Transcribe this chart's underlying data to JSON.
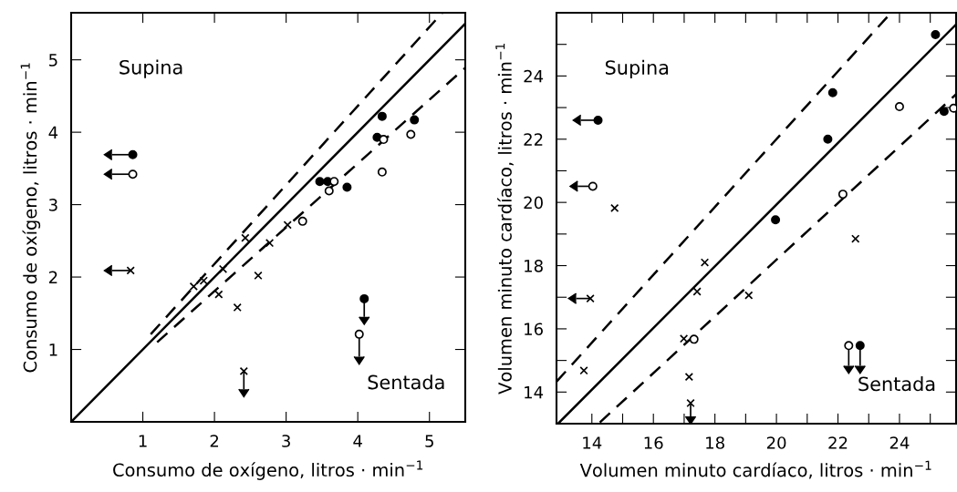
{
  "chart_data": [
    {
      "type": "scatter",
      "xlabel": "Consumo de oxígeno, litros · min$^{−1}$",
      "ylabel": "Consumo de oxígeno, litros · min$^{−1}$",
      "annotations": [
        "Supina",
        "Sentada"
      ],
      "xlim": [
        0,
        5.5
      ],
      "ylim": [
        0,
        5.65
      ],
      "xticks": [
        1,
        2,
        3,
        4,
        5
      ],
      "yticks": [
        1,
        2,
        3,
        4,
        5
      ],
      "grid": false,
      "legend": false,
      "series": [
        {
          "marker": "circle",
          "color": "#000000",
          "x": [
            0.86,
            3.47,
            3.58,
            3.85,
            4.34,
            4.27,
            4.79,
            4.09
          ],
          "values": [
            3.69,
            3.32,
            3.32,
            3.24,
            4.22,
            3.93,
            4.17,
            1.7
          ],
          "xerrors": [
            [
              0.57,
              0.86
            ],
            null,
            null,
            null,
            null,
            null,
            null,
            null
          ],
          "errors": [
            null,
            null,
            null,
            null,
            null,
            null,
            null,
            [
              1.45,
              1.7
            ]
          ]
        },
        {
          "marker": "circle",
          "color": "#ffffff",
          "x": [
            0.86,
            3.67,
            3.6,
            3.23,
            4.36,
            4.34,
            4.74,
            4.02
          ],
          "values": [
            3.42,
            3.32,
            3.19,
            2.77,
            3.9,
            3.45,
            3.97,
            1.21
          ],
          "xerrors": [
            [
              0.57,
              0.86
            ],
            null,
            null,
            null,
            null,
            null,
            null,
            null
          ],
          "errors": [
            null,
            null,
            null,
            null,
            null,
            null,
            null,
            [
              0.9,
              1.21
            ]
          ]
        },
        {
          "marker": "cross",
          "color": "#000000",
          "x": [
            0.83,
            1.71,
            1.85,
            2.12,
            2.06,
            2.43,
            2.77,
            3.02,
            2.61,
            2.32,
            2.41
          ],
          "values": [
            2.09,
            1.87,
            1.95,
            2.11,
            1.76,
            2.54,
            2.47,
            2.72,
            2.02,
            1.58,
            0.7
          ],
          "xerrors": [
            [
              0.57,
              0.83
            ],
            null,
            null,
            null,
            null,
            null,
            null,
            null,
            null,
            null,
            null
          ],
          "errors": [
            null,
            null,
            null,
            null,
            null,
            null,
            null,
            null,
            null,
            null,
            [
              0.45,
              0.7
            ]
          ]
        },
        {
          "type": "line",
          "line_style": "solid",
          "color": "#000000",
          "x": [
            0,
            5.5
          ],
          "values": [
            0,
            5.5
          ]
        },
        {
          "type": "line",
          "line_style": "dashed",
          "color": "#000000",
          "x": [
            1.11,
            5.18
          ],
          "values": [
            1.21,
            5.65
          ]
        },
        {
          "type": "line",
          "line_style": "dashed",
          "color": "#000000",
          "x": [
            1.2,
            5.5
          ],
          "values": [
            1.1,
            4.89
          ]
        }
      ]
    },
    {
      "type": "scatter",
      "xlabel": "Volumen minuto cardíaco, litros · min$^{−1}$",
      "ylabel": "Volumen minuto cardíaco, litros · min$^{−1}$",
      "annotations": [
        "Supina",
        "Sentada"
      ],
      "xlim": [
        12.85,
        25.84
      ],
      "ylim": [
        13,
        26
      ],
      "xticks": [
        14,
        {
          "value": 15,
          "label": null
        },
        16,
        {
          "value": 17,
          "label": null
        },
        18,
        {
          "value": 19,
          "label": null
        },
        20,
        {
          "value": 21,
          "label": null
        },
        22,
        {
          "value": 23,
          "label": null
        },
        24,
        {
          "value": 25,
          "label": null
        }
      ],
      "yticks": [
        14,
        {
          "value": 15,
          "label": null
        },
        16,
        {
          "value": 17,
          "label": null
        },
        18,
        {
          "value": 19,
          "label": null
        },
        20,
        {
          "value": 21,
          "label": null
        },
        22,
        {
          "value": 23,
          "label": null
        },
        24,
        {
          "value": 25,
          "label": null
        }
      ],
      "grid": false,
      "legend": false,
      "series": [
        {
          "marker": "circle",
          "color": "#000000",
          "x": [
            14.2,
            25.17,
            21.83,
            21.67,
            19.97,
            25.45,
            22.72
          ],
          "values": [
            22.6,
            25.31,
            23.47,
            22.0,
            19.45,
            22.88,
            15.47
          ],
          "xerrors": [
            [
              13.64,
              14.2
            ],
            null,
            null,
            null,
            null,
            null,
            null
          ],
          "errors": [
            null,
            null,
            null,
            null,
            null,
            null,
            [
              14.83,
              15.47
            ]
          ]
        },
        {
          "marker": "circle",
          "color": "#ffffff",
          "x": [
            14.03,
            24.0,
            22.16,
            17.32,
            25.76,
            22.35
          ],
          "values": [
            20.51,
            23.03,
            20.26,
            15.67,
            22.98,
            15.47
          ],
          "xerrors": [
            [
              13.54,
              14.03
            ],
            null,
            null,
            null,
            null,
            null
          ],
          "errors": [
            null,
            null,
            null,
            null,
            null,
            [
              14.83,
              15.47
            ]
          ]
        },
        {
          "marker": "cross",
          "color": "#000000",
          "x": [
            14.74,
            13.95,
            13.74,
            17.67,
            17.42,
            16.99,
            17.16,
            17.21,
            22.57,
            19.1
          ],
          "values": [
            19.82,
            16.96,
            14.68,
            18.1,
            17.18,
            15.69,
            14.48,
            13.65,
            18.85,
            17.06
          ],
          "xerrors": [
            null,
            [
              13.49,
              13.95
            ],
            null,
            null,
            null,
            null,
            null,
            null,
            null,
            null
          ],
          "errors": [
            null,
            null,
            null,
            null,
            null,
            null,
            null,
            [
              13.23,
              13.65
            ],
            null,
            null
          ]
        },
        {
          "type": "line",
          "line_style": "solid",
          "color": "#000000",
          "x": [
            12.9,
            25.84
          ],
          "values": [
            13.0,
            25.63
          ]
        },
        {
          "type": "line",
          "line_style": "dashed",
          "color": "#000000",
          "x": [
            12.85,
            23.69
          ],
          "values": [
            14.33,
            25.96
          ]
        },
        {
          "type": "line",
          "line_style": "dashed",
          "color": "#000000",
          "x": [
            14.26,
            25.84
          ],
          "values": [
            13.04,
            23.42
          ]
        }
      ]
    }
  ]
}
